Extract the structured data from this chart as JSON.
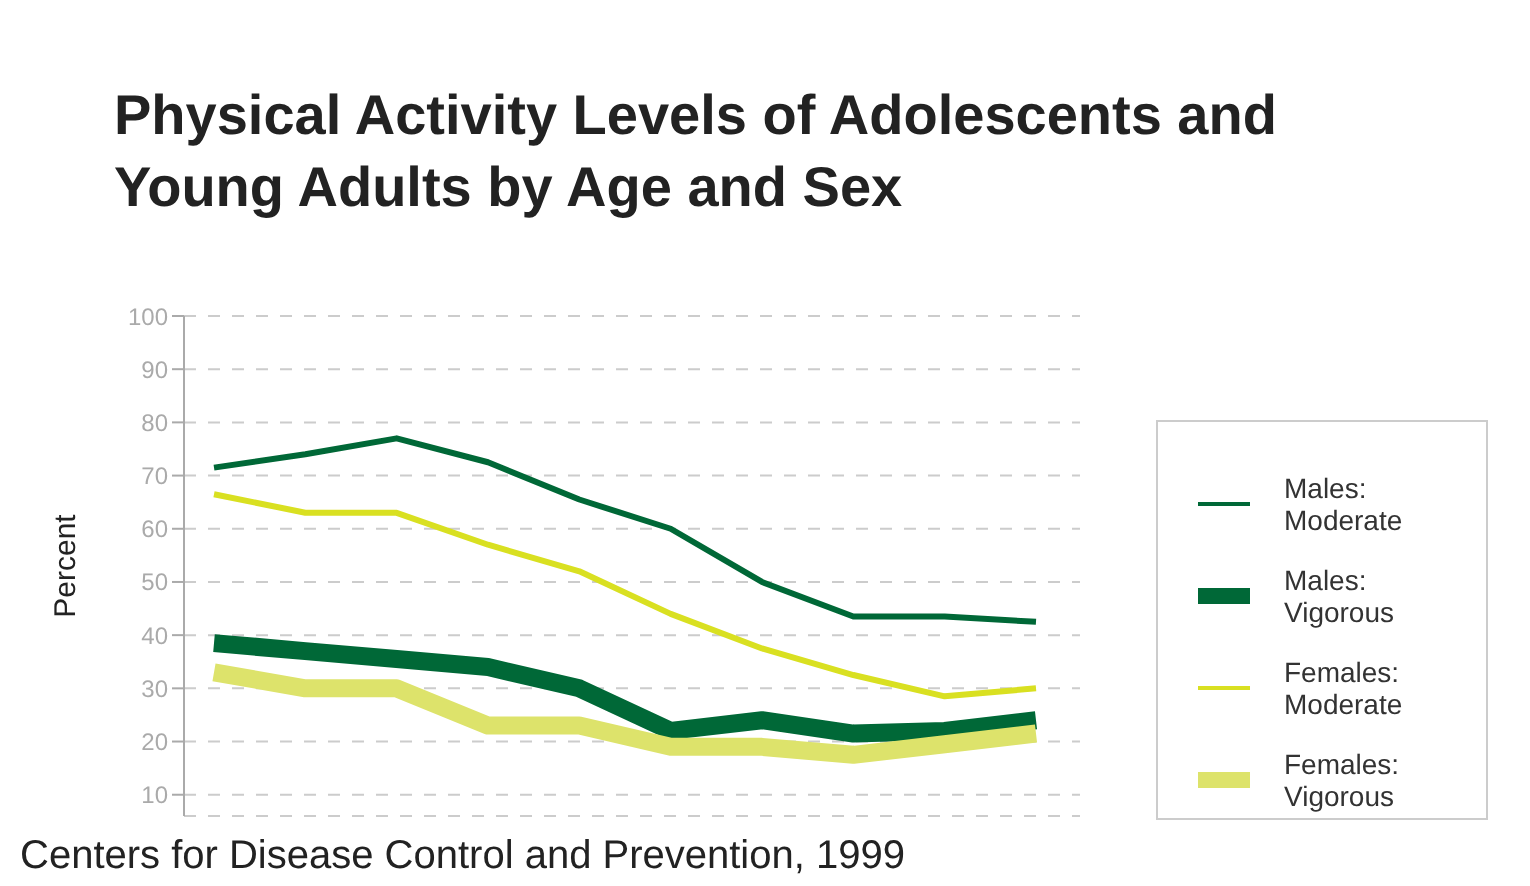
{
  "chart_data": {
    "type": "line",
    "title": "Physical Activity Levels of Adolescents and Young Adults by Age and Sex",
    "ylabel": "Percent",
    "annotations": [
      "Centers for Disease Control and Prevention, 1999"
    ],
    "categories": [
      null,
      null,
      null,
      null,
      null,
      null,
      null,
      null,
      null,
      null
    ],
    "series": [
      {
        "name": "Males: Moderate",
        "color": "#006837",
        "values": [
          71.5,
          74,
          77,
          72.5,
          65.5,
          60,
          50,
          43.5,
          43.5,
          42.5
        ]
      },
      {
        "name": "Males: Vigorous",
        "color": "#006837",
        "values": [
          38.5,
          37,
          35.5,
          34,
          30,
          22,
          24,
          21.5,
          22,
          24
        ]
      },
      {
        "name": "Females: Moderate",
        "color": "#d9e021",
        "values": [
          66.5,
          63,
          63,
          57,
          52,
          44,
          37.5,
          32.5,
          28.5,
          30
        ]
      },
      {
        "name": "Females: Vigorous",
        "color": "#dde36b",
        "values": [
          33,
          30,
          30,
          23,
          23,
          19,
          19,
          17.5,
          19.5,
          21.5
        ]
      }
    ],
    "ylim": [
      6,
      100
    ],
    "yticks": [
      10,
      20,
      30,
      40,
      50,
      60,
      70,
      80,
      90,
      100
    ],
    "grid": "y",
    "legend": "right",
    "tick_labels": "y",
    "marker": "none",
    "line_style": "solid"
  }
}
